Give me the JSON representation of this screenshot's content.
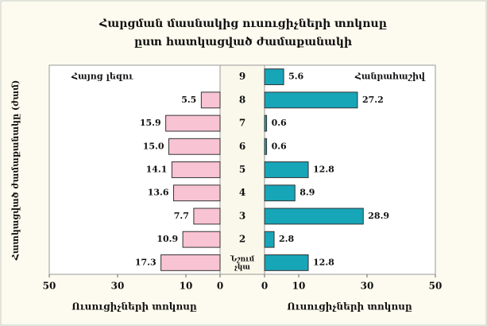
{
  "chart_data": {
    "type": "butterfly",
    "title": [
      "Հարցման մասնակից ուսուցիչների տոկոսը",
      "ըստ հատկացված ժամաքանակի"
    ],
    "y_label": "Հատկացված ժամաքանակը (ժամ)",
    "x_labels": [
      "Ուսուցիչների տոկոսը",
      "Ուսուցիչների տոկոսը"
    ],
    "categories": [
      "9",
      "8",
      "7",
      "6",
      "5",
      "4",
      "3",
      "2",
      "Նշում չկա"
    ],
    "series": [
      {
        "name": "Հայոց լեզու",
        "color": "#f8c3d3",
        "side": "left",
        "values": [
          null,
          5.5,
          15.9,
          15.0,
          14.1,
          13.6,
          7.7,
          10.9,
          17.3
        ],
        "value_labels": [
          null,
          "5.5",
          "15.9",
          "15.0",
          "14.1",
          "13.6",
          "7.7",
          "10.9",
          "17.3"
        ]
      },
      {
        "name": "Հանրահաշիվ",
        "color": "#17a5b8",
        "side": "right",
        "values": [
          5.6,
          27.2,
          0.6,
          0.6,
          12.8,
          8.9,
          28.9,
          2.8,
          12.8
        ],
        "value_labels": [
          "5.6",
          "27.2",
          "0.6",
          "0.6",
          "12.8",
          "8.9",
          "28.9",
          "2.8",
          "12.8"
        ]
      }
    ],
    "xlim": [
      0,
      50
    ],
    "xticks": [
      0,
      10,
      30,
      50
    ]
  }
}
